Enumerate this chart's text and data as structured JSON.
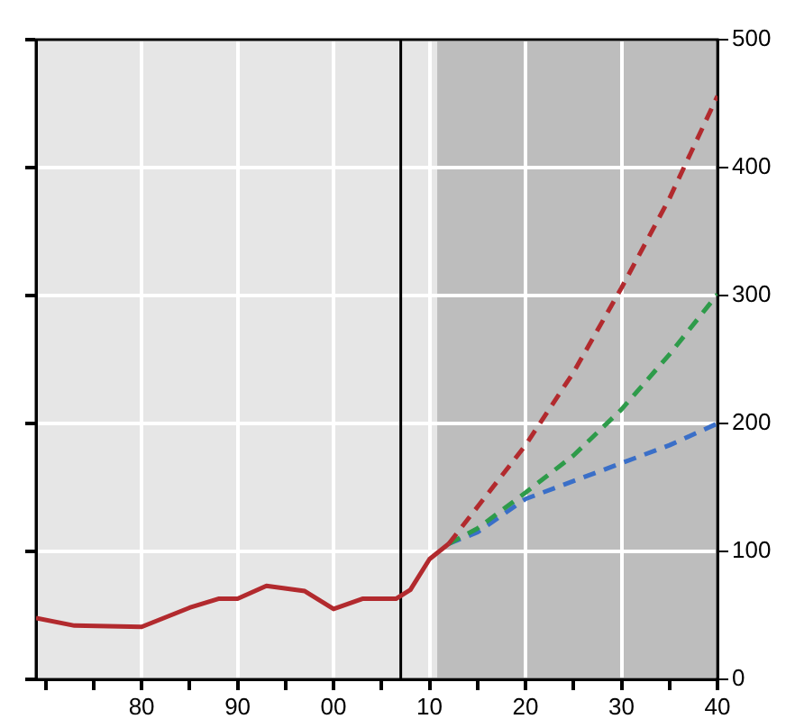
{
  "chart_data": {
    "type": "line",
    "xlim": [
      1969,
      2040
    ],
    "xticks": [
      {
        "value": 1970,
        "label": null
      },
      {
        "value": 1975,
        "label": null
      },
      {
        "value": 1980,
        "label": "80"
      },
      {
        "value": 1985,
        "label": null
      },
      {
        "value": 1990,
        "label": "90"
      },
      {
        "value": 1995,
        "label": null
      },
      {
        "value": 2000,
        "label": "00"
      },
      {
        "value": 2005,
        "label": null
      },
      {
        "value": 2010,
        "label": "10"
      },
      {
        "value": 2015,
        "label": null
      },
      {
        "value": 2020,
        "label": "20"
      },
      {
        "value": 2025,
        "label": null
      },
      {
        "value": 2030,
        "label": "30"
      },
      {
        "value": 2035,
        "label": null
      },
      {
        "value": 2040,
        "label": "40"
      }
    ],
    "ylim": [
      0,
      500
    ],
    "yticks": [
      0,
      100,
      200,
      300,
      400,
      500
    ],
    "grid": true,
    "series": [
      {
        "color": "#b22a2e",
        "line_style": "solid",
        "x": [
          1969,
          1973,
          1980,
          1985,
          1988,
          1990,
          1993,
          1997,
          2000,
          2003,
          2006.5,
          2008,
          2010,
          2012
        ],
        "values": [
          48,
          42,
          41,
          56,
          63,
          63,
          73,
          69,
          55,
          63,
          63,
          70,
          94,
          106
        ]
      },
      {
        "color": "#b22a2e",
        "line_style": "dashed",
        "x": [
          2012,
          2020,
          2025,
          2030,
          2035,
          2040
        ],
        "values": [
          106,
          183,
          240,
          306,
          376,
          456
        ]
      },
      {
        "color": "#2e9b4a",
        "line_style": "dashed",
        "x": [
          2012,
          2015,
          2020,
          2025,
          2030,
          2035,
          2040
        ],
        "values": [
          106,
          118,
          146,
          175,
          211,
          254,
          301
        ]
      },
      {
        "color": "#3a6fc8",
        "line_style": "dashed",
        "x": [
          2012,
          2015,
          2020,
          2025,
          2030,
          2035,
          2040
        ],
        "values": [
          106,
          115,
          141,
          155,
          169,
          183,
          200
        ]
      }
    ],
    "ref_lines": [
      {
        "axis": "x",
        "value": 2007,
        "color": "#000000"
      }
    ],
    "bands": [
      {
        "axis": "x",
        "from": 2010.8,
        "to": 2040,
        "color": "#bdbdbd"
      }
    ]
  }
}
